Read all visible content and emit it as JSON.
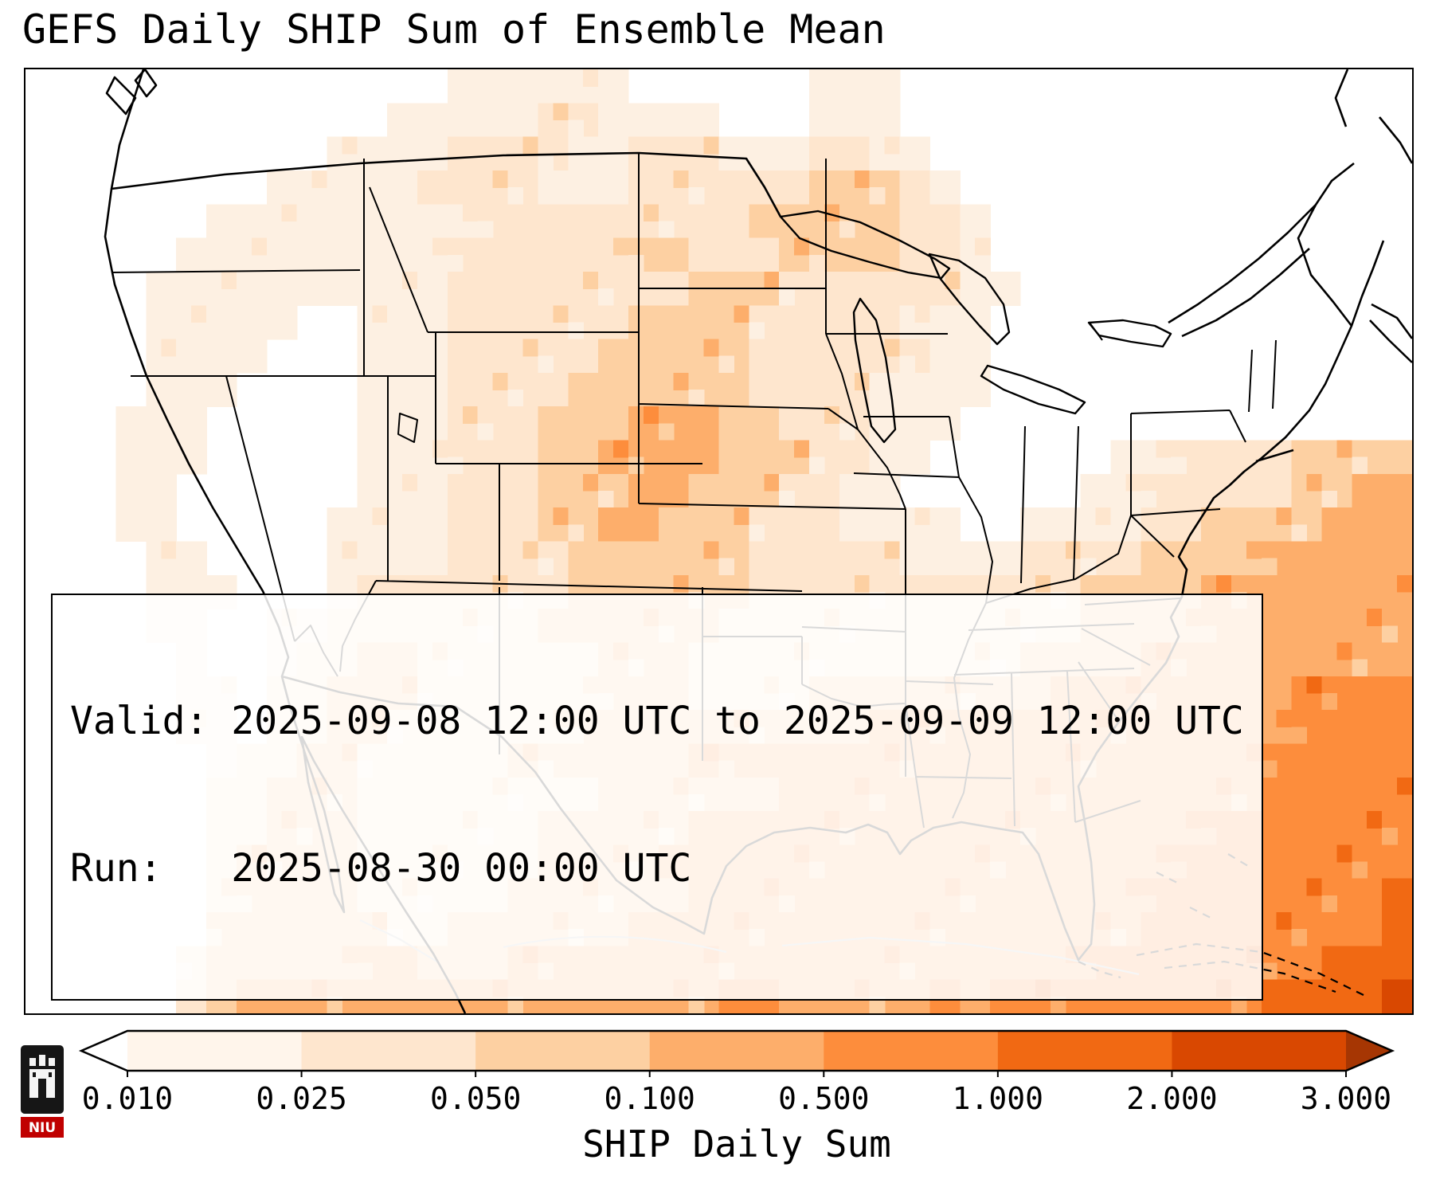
{
  "title": "GEFS Daily SHIP Sum of Ensemble Mean",
  "info_box": {
    "valid_line": "Valid: 2025-09-08 12:00 UTC to 2025-09-09 12:00 UTC",
    "run_line": "Run:   2025-08-30 00:00 UTC"
  },
  "colorbar": {
    "label": "SHIP Daily Sum",
    "ticks": [
      "0.010",
      "0.025",
      "0.050",
      "0.100",
      "0.500",
      "1.000",
      "2.000",
      "3.000"
    ],
    "segment_colors": [
      "#fff5eb",
      "#fee6ce",
      "#fdd0a2",
      "#fdae6b",
      "#fd8d3c",
      "#f16913",
      "#d94801"
    ],
    "under_color": "#ffffff",
    "over_color": "#a63603"
  },
  "logo": {
    "text": "NIU",
    "bg": "#161616",
    "band": "#c00000"
  },
  "chart_data": {
    "type": "heatmap",
    "title": "GEFS Daily SHIP Sum of Ensemble Mean",
    "colorbar_label": "SHIP Daily Sum",
    "colorbar_levels": [
      0.01,
      0.025,
      0.05,
      0.1,
      0.5,
      1.0,
      2.0,
      3.0
    ],
    "valid": "2025-09-08 12:00 UTC to 2025-09-09 12:00 UTC",
    "run": "2025-08-30 00:00 UTC",
    "grid_cols": 46,
    "grid_rows": 28,
    "level_colors": [
      "#ffffff",
      "#fdf0e2",
      "#fee6ce",
      "#fdd0a2",
      "#fdae6b",
      "#fd8d3c",
      "#f16913",
      "#d94801"
    ],
    "grid": [
      "0000000000000011111100000011100000000000000000",
      "0000000000001111122111100011100000000000000000",
      "0000000000111122221122211122110000000000000000",
      "0000000011111222211122222233321000000000000000",
      "0000001111111112222222223333322100000000000000",
      "0000011111111122222233222333322100000000000000",
      "0000111111111122222222333222222110000000000000",
      "0000111110011122222233332222211100000000000000",
      "0000111100011122222333332222221100000000000000",
      "0000111000011122223333332222111100000000000000",
      "0001110000011122233344433222111000000000000000",
      "0001110000011122233444433322110000001122223333",
      "0001100000011122233344333221100000011222223344",
      "0001100000111122233443332221111001111223333444",
      "0000110000111122223333332222211112222333344444",
      "0000111000122222223333332222222222233334444444",
      "0000110011222222233333322222222222233334444444",
      "0000010012233222222333222222222223333444444444",
      "0000011022333222222333222233333333444444445555",
      "0000011022332222223333333333444444444444445555",
      "0000001223322222333333444444444444444444455555",
      "0000002233322222222333333444444444444444455555",
      "0000002233322222233333444444444444444445555555",
      "0000002333322222233334444444444444444455555555",
      "0000002333322222333333444444444444444555555556",
      "0000003333332233333344444444444444444555555556",
      "0000023333344333444444444444444444455555555666",
      "0000023444444444444444455444445455555555566667"
    ]
  }
}
